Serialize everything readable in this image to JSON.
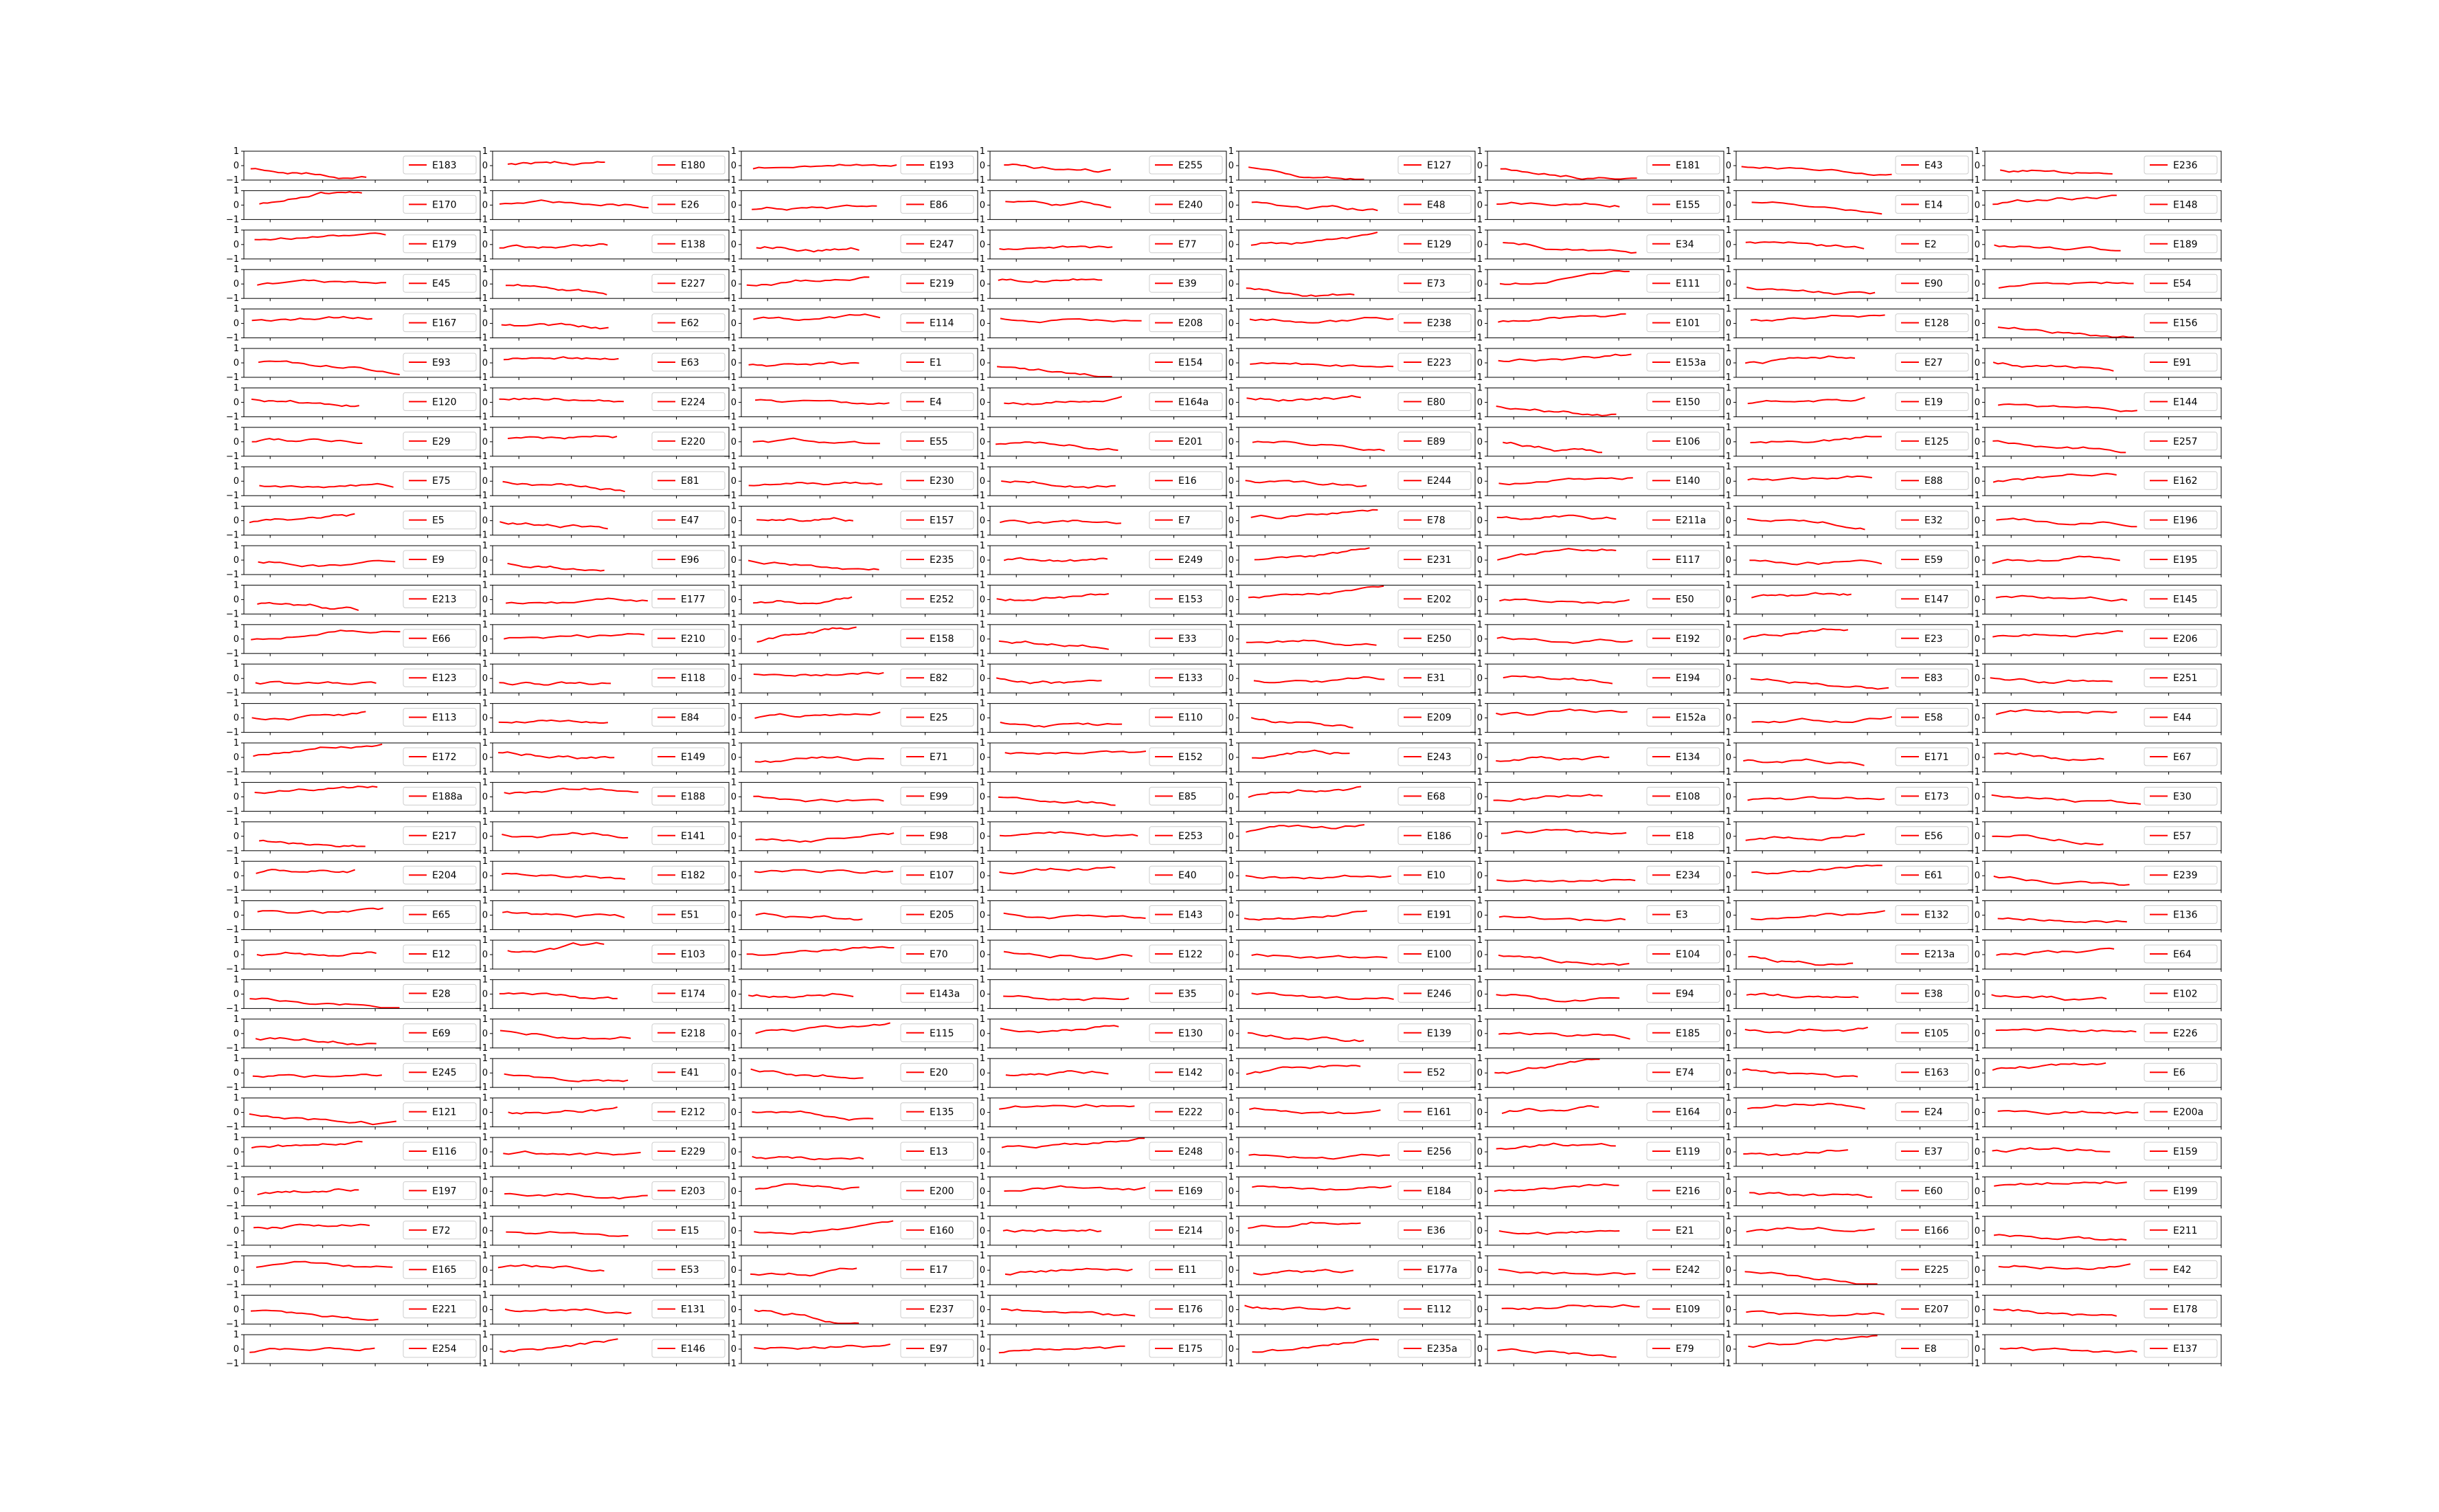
{
  "figure": {
    "axes_rows": 32,
    "axes_cols": 8
  },
  "chart_data": {
    "type": "line",
    "series_color": "#ff0000",
    "xlim": [
      12.5,
      17
    ],
    "ylim": [
      -1,
      1
    ],
    "xticks": [
      13,
      14,
      15,
      16,
      17
    ],
    "yticks": [
      -1,
      0,
      1
    ],
    "legend_loc": "right",
    "grid": false,
    "panels": [
      "E183",
      "E180",
      "E193",
      "E255",
      "E127",
      "E181",
      "E43",
      "E236",
      "E170",
      "E26",
      "E86",
      "E240",
      "E48",
      "E155",
      "E14",
      "E148",
      "E179",
      "E138",
      "E247",
      "E77",
      "E129",
      "E34",
      "E2",
      "E189",
      "E45",
      "E227",
      "E219",
      "E39",
      "E73",
      "E111",
      "E90",
      "E54",
      "E167",
      "E62",
      "E114",
      "E208",
      "E238",
      "E101",
      "E128",
      "E156",
      "E93",
      "E63",
      "E1",
      "E154",
      "E223",
      "E153a",
      "E27",
      "E91",
      "E120",
      "E224",
      "E4",
      "E164a",
      "E80",
      "E150",
      "E19",
      "E144",
      "E29",
      "E220",
      "E55",
      "E201",
      "E89",
      "E106",
      "E125",
      "E257",
      "E75",
      "E81",
      "E230",
      "E16",
      "E244",
      "E140",
      "E88",
      "E162",
      "E5",
      "E47",
      "E157",
      "E7",
      "E78",
      "E211a",
      "E32",
      "E196",
      "E9",
      "E96",
      "E235",
      "E249",
      "E231",
      "E117",
      "E59",
      "E195",
      "E213",
      "E177",
      "E252",
      "E153",
      "E202",
      "E50",
      "E147",
      "E145",
      "E66",
      "E210",
      "E158",
      "E33",
      "E250",
      "E192",
      "E23",
      "E206",
      "E123",
      "E118",
      "E82",
      "E133",
      "E31",
      "E194",
      "E83",
      "E251",
      "E113",
      "E84",
      "E25",
      "E110",
      "E209",
      "E152a",
      "E58",
      "E44",
      "E172",
      "E149",
      "E71",
      "E152",
      "E243",
      "E134",
      "E171",
      "E67",
      "E188a",
      "E188",
      "E99",
      "E85",
      "E68",
      "E108",
      "E173",
      "E30",
      "E217",
      "E141",
      "E98",
      "E253",
      "E186",
      "E18",
      "E56",
      "E57",
      "E204",
      "E182",
      "E107",
      "E40",
      "E10",
      "E234",
      "E61",
      "E239",
      "E65",
      "E51",
      "E205",
      "E143",
      "E191",
      "E3",
      "E132",
      "E136",
      "E12",
      "E103",
      "E70",
      "E122",
      "E100",
      "E104",
      "E213a",
      "E64",
      "E28",
      "E174",
      "E143a",
      "E35",
      "E246",
      "E94",
      "E38",
      "E102",
      "E69",
      "E218",
      "E115",
      "E130",
      "E139",
      "E185",
      "E105",
      "E226",
      "E245",
      "E41",
      "E20",
      "E142",
      "E52",
      "E74",
      "E163",
      "E6",
      "E121",
      "E212",
      "E135",
      "E222",
      "E161",
      "E164",
      "E24",
      "E200a",
      "E116",
      "E229",
      "E13",
      "E248",
      "E256",
      "E119",
      "E37",
      "E159",
      "E197",
      "E203",
      "E200",
      "E169",
      "E184",
      "E216",
      "E60",
      "E199",
      "E72",
      "E15",
      "E160",
      "E214",
      "E36",
      "E21",
      "E166",
      "E211",
      "E165",
      "E53",
      "E17",
      "E11",
      "E177a",
      "E242",
      "E225",
      "E42",
      "E221",
      "E131",
      "E237",
      "E176",
      "E112",
      "E109",
      "E207",
      "E178",
      "E254",
      "E146",
      "E97",
      "E175",
      "E235a",
      "E79",
      "E8",
      "E137"
    ]
  }
}
